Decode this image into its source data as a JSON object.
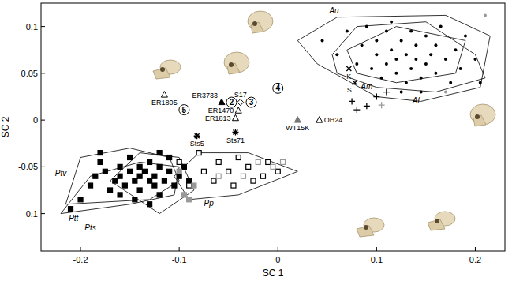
{
  "chart_data": {
    "type": "scatter",
    "xlabel": "SC 1",
    "ylabel": "SC 2",
    "xlim": [
      -0.24,
      0.23
    ],
    "ylim": [
      -0.14,
      0.125
    ],
    "xticks": [
      -0.2,
      -0.1,
      0,
      0.1,
      0.2
    ],
    "yticks": [
      -0.1,
      -0.05,
      0,
      0.05,
      0.1
    ],
    "grid": false,
    "series": [
      {
        "marker": "dot",
        "color": "#000000",
        "x": [
          0.045,
          0.06,
          0.07,
          0.08,
          0.085,
          0.09,
          0.095,
          0.1,
          0.1,
          0.105,
          0.11,
          0.11,
          0.115,
          0.12,
          0.12,
          0.125,
          0.13,
          0.13,
          0.135,
          0.135,
          0.14,
          0.14,
          0.145,
          0.15,
          0.15,
          0.155,
          0.16,
          0.16,
          0.165,
          0.17,
          0.175,
          0.18,
          0.185,
          0.19,
          0.2,
          0.125,
          0.145,
          0.205,
          0.115
        ],
        "values": [
          0.085,
          0.07,
          0.095,
          0.06,
          0.08,
          0.1,
          0.055,
          0.07,
          0.085,
          0.045,
          0.06,
          0.095,
          0.075,
          0.05,
          0.065,
          0.085,
          0.04,
          0.07,
          0.055,
          0.095,
          0.065,
          0.08,
          0.045,
          0.06,
          0.09,
          0.07,
          0.05,
          0.08,
          0.1,
          0.065,
          0.04,
          0.075,
          0.055,
          0.09,
          0.065,
          0.03,
          0.03,
          0.04,
          0.105
        ]
      },
      {
        "marker": "dot",
        "color": "#999999",
        "x": [
          0.21,
          0.17
        ],
        "values": [
          0.112,
          0.03
        ]
      },
      {
        "marker": "x",
        "color": "#000000",
        "x": [
          0.072,
          0.078
        ],
        "values": [
          0.055,
          0.04
        ],
        "labels": [
          "K",
          "S"
        ]
      },
      {
        "marker": "plus",
        "color": "#000000",
        "x": [
          0.075,
          0.09,
          0.1,
          0.11,
          0.08
        ],
        "values": [
          0.02,
          0.015,
          0.025,
          0.03,
          0.011
        ]
      },
      {
        "marker": "plus",
        "color": "#999999",
        "x": [
          0.105
        ],
        "values": [
          0.016
        ]
      },
      {
        "marker": "triangle-open",
        "color": "#000000",
        "x": [
          -0.115,
          -0.04,
          -0.043,
          0.042
        ],
        "values": [
          0.027,
          0.01,
          0.002,
          0.0
        ],
        "labels": [
          "ER1805",
          "ER1470",
          "ER1813",
          "OH24"
        ]
      },
      {
        "marker": "triangle",
        "color": "#000000",
        "x": [
          -0.057
        ],
        "values": [
          0.019
        ],
        "labels": [
          "ER3733"
        ]
      },
      {
        "marker": "triangle",
        "color": "#777777",
        "x": [
          0.02
        ],
        "values": [
          0.0
        ],
        "labels": [
          "WT15K"
        ]
      },
      {
        "marker": "diamond-open",
        "color": "#000000",
        "x": [
          -0.038
        ],
        "values": [
          0.019
        ],
        "labels": [
          "S17"
        ]
      },
      {
        "marker": "asterisk",
        "color": "#000000",
        "x": [
          -0.082,
          -0.043
        ],
        "values": [
          -0.017,
          -0.013
        ],
        "labels": [
          "Sts5",
          "Sts71"
        ]
      },
      {
        "marker": "square",
        "color": "#000000",
        "x": [
          -0.21,
          -0.2,
          -0.19,
          -0.185,
          -0.18,
          -0.175,
          -0.17,
          -0.165,
          -0.16,
          -0.16,
          -0.155,
          -0.15,
          -0.15,
          -0.145,
          -0.14,
          -0.14,
          -0.14,
          -0.135,
          -0.13,
          -0.13,
          -0.125,
          -0.125,
          -0.12,
          -0.12,
          -0.115,
          -0.11,
          -0.11,
          -0.105,
          -0.1,
          -0.095,
          -0.13,
          -0.145,
          -0.16,
          -0.18,
          -0.12,
          -0.09
        ],
        "values": [
          -0.095,
          -0.085,
          -0.07,
          -0.06,
          -0.045,
          -0.055,
          -0.075,
          -0.065,
          -0.05,
          -0.06,
          -0.07,
          -0.04,
          -0.055,
          -0.065,
          -0.05,
          -0.06,
          -0.075,
          -0.055,
          -0.045,
          -0.065,
          -0.06,
          -0.07,
          -0.05,
          -0.08,
          -0.065,
          -0.055,
          -0.04,
          -0.07,
          -0.06,
          -0.05,
          -0.09,
          -0.085,
          -0.08,
          -0.035,
          -0.035,
          -0.065
        ]
      },
      {
        "marker": "square-open",
        "color": "#000000",
        "x": [
          -0.1,
          -0.09,
          -0.08,
          -0.075,
          -0.065,
          -0.06,
          -0.05,
          -0.045,
          -0.04,
          -0.03,
          -0.025,
          -0.015,
          -0.01,
          0.0
        ],
        "values": [
          -0.045,
          -0.07,
          -0.035,
          -0.055,
          -0.065,
          -0.045,
          -0.055,
          -0.07,
          -0.04,
          -0.05,
          -0.065,
          -0.06,
          -0.045,
          -0.055
        ]
      },
      {
        "marker": "square",
        "color": "#999999",
        "x": [
          -0.1,
          -0.095,
          -0.09,
          -0.085
        ],
        "values": [
          -0.055,
          -0.08,
          -0.085,
          -0.07
        ]
      },
      {
        "marker": "square-open",
        "color": "#999999",
        "x": [
          -0.06,
          -0.035,
          -0.02,
          -0.005,
          0.005
        ],
        "values": [
          -0.06,
          -0.06,
          -0.045,
          -0.05,
          -0.045
        ]
      }
    ],
    "polygons": [
      {
        "label": "Au",
        "label_x": 0.057,
        "label_y": 0.114,
        "x": [
          0.02,
          0.06,
          0.17,
          0.215,
          0.205,
          0.145,
          0.1,
          0.04
        ],
        "y": [
          0.085,
          0.11,
          0.112,
          0.09,
          0.035,
          0.02,
          0.025,
          0.06
        ]
      },
      {
        "label": "Af",
        "label_x": 0.14,
        "label_y": 0.018,
        "x": [
          0.055,
          0.08,
          0.15,
          0.2,
          0.21,
          0.16,
          0.1,
          0.06
        ],
        "y": [
          0.07,
          0.1,
          0.105,
          0.07,
          0.045,
          0.03,
          0.035,
          0.05
        ]
      },
      {
        "label": "Am",
        "label_x": 0.09,
        "label_y": 0.033,
        "x": [
          0.07,
          0.12,
          0.19,
          0.18,
          0.12,
          0.08
        ],
        "y": [
          0.075,
          0.1,
          0.085,
          0.05,
          0.04,
          0.05
        ]
      },
      {
        "label": "Ptv",
        "label_x": -0.22,
        "label_y": -0.06,
        "x": [
          -0.215,
          -0.2,
          -0.15,
          -0.11,
          -0.1,
          -0.13
        ],
        "y": [
          -0.09,
          -0.04,
          -0.03,
          -0.04,
          -0.065,
          -0.085
        ]
      },
      {
        "label": "Ptt",
        "label_x": -0.207,
        "label_y": -0.108,
        "x": [
          -0.22,
          -0.19,
          -0.14,
          -0.1,
          -0.105,
          -0.15
        ],
        "y": [
          -0.1,
          -0.06,
          -0.045,
          -0.05,
          -0.08,
          -0.09
        ]
      },
      {
        "label": "Pts",
        "label_x": -0.19,
        "label_y": -0.118,
        "x": [
          -0.17,
          -0.14,
          -0.1,
          -0.085,
          -0.12
        ],
        "y": [
          -0.065,
          -0.035,
          -0.04,
          -0.075,
          -0.1
        ]
      },
      {
        "label": "Pp",
        "label_x": -0.07,
        "label_y": -0.092,
        "x": [
          -0.105,
          -0.08,
          -0.03,
          0.02,
          -0.04,
          -0.09
        ],
        "y": [
          -0.06,
          -0.035,
          -0.035,
          -0.055,
          -0.08,
          -0.085
        ]
      }
    ],
    "annotations": [
      {
        "text": "2",
        "x": -0.047,
        "y": 0.019
      },
      {
        "text": "3",
        "x": -0.027,
        "y": 0.019
      },
      {
        "text": "4",
        "x": 0.0,
        "y": 0.034
      },
      {
        "text": "5",
        "x": -0.095,
        "y": 0.011
      }
    ]
  }
}
